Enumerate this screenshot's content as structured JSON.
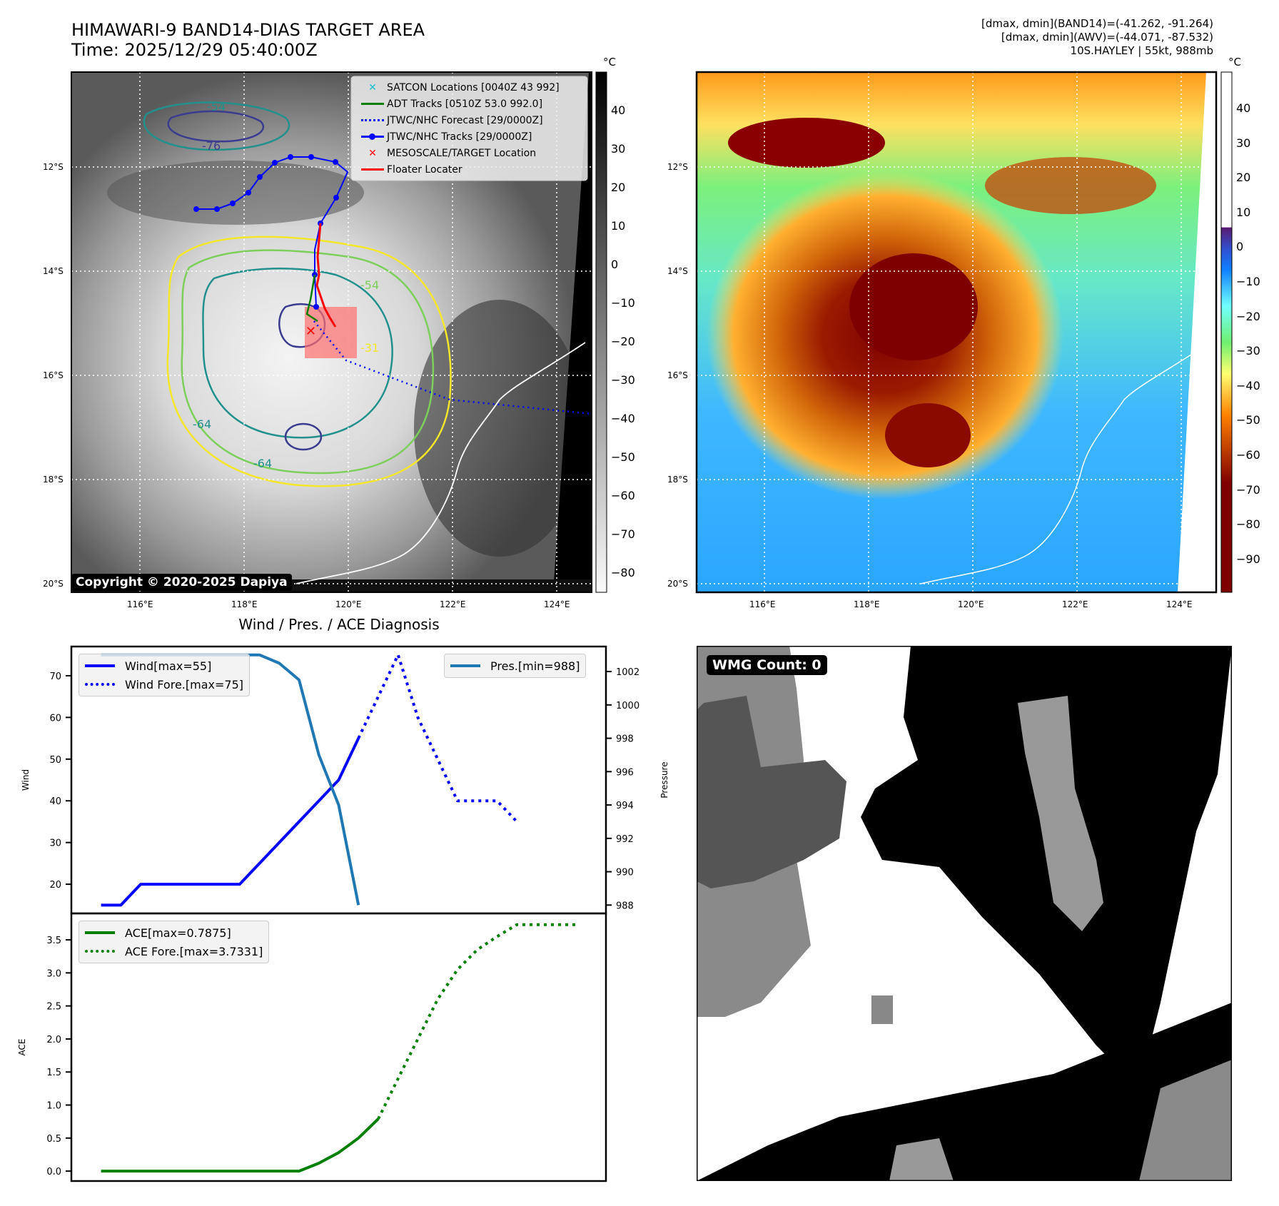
{
  "header": {
    "title_line1": "HIMAWARI-9 BAND14-DIAS TARGET AREA",
    "title_line2": "Time: 2025/12/29 05:40:00Z",
    "stats_line1": "[dmax, dmin](BAND14)=(-41.262, -91.264)",
    "stats_line2": "[dmax, dmin](AWV)=(-44.071, -87.532)",
    "stats_line3": "10S.HAYLEY | 55kt, 988mb"
  },
  "map_left": {
    "lat_labels": [
      "12°S",
      "14°S",
      "16°S",
      "18°S",
      "20°S"
    ],
    "lon_labels": [
      "116°E",
      "118°E",
      "120°E",
      "122°E",
      "124°E"
    ],
    "legend": [
      {
        "label": "SATCON Locations [0040Z 43 992]",
        "color": "#17becf",
        "icon": "x-marker-icon"
      },
      {
        "label": "ADT Tracks [0510Z 53.0 992.0]",
        "color": "#008000",
        "icon": "solid-line-icon"
      },
      {
        "label": "JTWC/NHC Forecast [29/0000Z]",
        "color": "#0000ff",
        "icon": "dotted-line-icon"
      },
      {
        "label": "JTWC/NHC Tracks [29/0000Z]",
        "color": "#0000ff",
        "icon": "line-dot-icon"
      },
      {
        "label": "MESOSCALE/TARGET Location",
        "color": "#ff0000",
        "icon": "x-marker-icon"
      },
      {
        "label": "Floater Locater",
        "color": "#ff0000",
        "icon": "solid-line-icon"
      }
    ],
    "contour_labels": [
      "-54",
      "-64",
      "-76",
      "-31",
      "-54",
      "-64"
    ],
    "copyright": "Copyright © 2020-2025 Dapiya",
    "colorbar_unit": "°C",
    "colorbar_ticks": [
      "40",
      "30",
      "20",
      "10",
      "0",
      "−10",
      "−20",
      "−30",
      "−40",
      "−50",
      "−60",
      "−70",
      "−80"
    ]
  },
  "map_right": {
    "lat_labels": [
      "12°S",
      "14°S",
      "16°S",
      "18°S",
      "20°S"
    ],
    "lon_labels": [
      "116°E",
      "118°E",
      "120°E",
      "122°E",
      "124°E"
    ],
    "colorbar_unit": "°C",
    "colorbar_ticks": [
      "40",
      "30",
      "20",
      "10",
      "0",
      "−10",
      "−20",
      "−30",
      "−40",
      "−50",
      "−60",
      "−70",
      "−80",
      "−90"
    ]
  },
  "wmg": {
    "badge": "WMG Count: 0"
  },
  "chart_data": [
    {
      "type": "line",
      "title": "Wind / Pres. / ACE Diagnosis",
      "xlabel": "",
      "ylabel": "Wind",
      "y2label": "Pressure",
      "ylim": [
        13,
        77
      ],
      "y2lim": [
        987.5,
        1003.5
      ],
      "yticks": [
        "20",
        "30",
        "40",
        "50",
        "60",
        "70"
      ],
      "y2ticks": [
        "988",
        "990",
        "992",
        "994",
        "996",
        "998",
        "1000",
        "1002"
      ],
      "x": [
        0,
        1,
        2,
        3,
        4,
        5,
        6,
        7,
        8,
        9,
        10,
        11,
        12,
        13,
        14,
        15,
        16,
        17,
        18,
        19,
        20,
        21,
        22,
        23,
        24
      ],
      "series": [
        {
          "name": "Wind[max=55]",
          "color": "#0000ff",
          "style": "solid",
          "values": [
            15,
            15,
            20,
            20,
            20,
            20,
            20,
            20,
            25,
            30,
            35,
            40,
            45,
            55,
            null,
            null,
            null,
            null,
            null,
            null,
            null,
            null,
            null,
            null,
            null
          ]
        },
        {
          "name": "Wind Fore.[max=75]",
          "color": "#0000ff",
          "style": "dotted",
          "values": [
            null,
            null,
            null,
            null,
            null,
            null,
            null,
            null,
            null,
            null,
            null,
            null,
            null,
            55,
            65,
            75,
            60,
            50,
            40,
            40,
            40,
            35,
            null,
            null,
            null
          ]
        },
        {
          "name": "Pres.[min=988]",
          "color": "#1f77b4",
          "style": "solid",
          "axis": "right",
          "values": [
            1003,
            1003,
            1003,
            1003,
            1003,
            1003,
            1003,
            1003,
            1003,
            1002.5,
            1001.5,
            997,
            994,
            988,
            null,
            null,
            null,
            null,
            null,
            null,
            null,
            null,
            null,
            null,
            null
          ]
        }
      ],
      "legend_left": [
        "Wind[max=55]",
        "Wind Fore.[max=75]"
      ],
      "legend_right": [
        "Pres.[min=988]"
      ]
    },
    {
      "type": "line",
      "title": "",
      "xlabel": "",
      "ylabel": "ACE",
      "ylim": [
        -0.15,
        3.9
      ],
      "yticks": [
        "0.0",
        "0.5",
        "1.0",
        "1.5",
        "2.0",
        "2.5",
        "3.0",
        "3.5"
      ],
      "x": [
        0,
        1,
        2,
        3,
        4,
        5,
        6,
        7,
        8,
        9,
        10,
        11,
        12,
        13,
        14,
        15,
        16,
        17,
        18,
        19,
        20,
        21,
        22,
        23,
        24
      ],
      "series": [
        {
          "name": "ACE[max=0.7875]",
          "color": "#008000",
          "style": "solid",
          "values": [
            0,
            0,
            0,
            0,
            0,
            0,
            0,
            0,
            0,
            0,
            0,
            0.12,
            0.28,
            0.5,
            0.79,
            null,
            null,
            null,
            null,
            null,
            null,
            null,
            null,
            null,
            null
          ]
        },
        {
          "name": "ACE Fore.[max=3.7331]",
          "color": "#008000",
          "style": "dotted",
          "values": [
            null,
            null,
            null,
            null,
            null,
            null,
            null,
            null,
            null,
            null,
            null,
            null,
            null,
            null,
            0.79,
            1.4,
            2.0,
            2.6,
            3.05,
            3.35,
            3.55,
            3.73,
            3.73,
            3.73,
            3.73
          ]
        }
      ]
    }
  ]
}
